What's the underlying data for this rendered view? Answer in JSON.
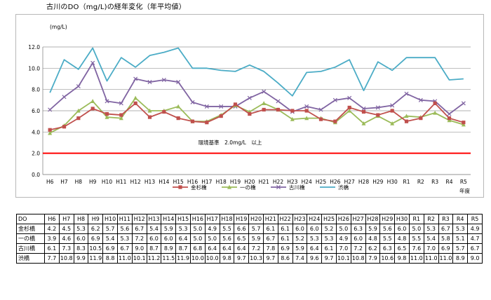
{
  "title": "古川のDO（mg/L)の経年変化（年平均値）",
  "chart_data": {
    "type": "line",
    "categories": [
      "H6",
      "H7",
      "H8",
      "H9",
      "H10",
      "H11",
      "H12",
      "H13",
      "H14",
      "H15",
      "H16",
      "H17",
      "H18",
      "H19",
      "H20",
      "H21",
      "H22",
      "H23",
      "H24",
      "H25",
      "H26",
      "H27",
      "H28",
      "H29",
      "H30",
      "R1",
      "R2",
      "R3",
      "R4",
      "R5"
    ],
    "ylabel": "(mg/L)",
    "xlabel": "年度",
    "ylim": [
      0,
      12
    ],
    "yticks": [
      "0.0",
      "2.0",
      "4.0",
      "6.0",
      "8.0",
      "10.0",
      "12.0"
    ],
    "grid": true,
    "legend_position": "bottom",
    "series": [
      {
        "name": "金杉橋",
        "color": "#c0504d",
        "marker": "square",
        "values": [
          4.2,
          4.5,
          5.3,
          6.2,
          5.7,
          5.6,
          6.7,
          5.4,
          5.9,
          5.3,
          5.0,
          4.9,
          5.5,
          6.6,
          5.7,
          6.1,
          6.1,
          6.0,
          6.0,
          5.2,
          5.0,
          6.3,
          5.9,
          5.6,
          6.0,
          5.0,
          5.3,
          6.7,
          5.3,
          4.9
        ]
      },
      {
        "name": "一の橋",
        "color": "#9bbb59",
        "marker": "triangle",
        "values": [
          3.9,
          4.6,
          6.0,
          6.9,
          5.4,
          5.3,
          7.2,
          6.0,
          6.0,
          6.4,
          5.0,
          5.0,
          5.6,
          6.5,
          5.9,
          6.7,
          6.1,
          5.2,
          5.3,
          5.3,
          4.9,
          6.0,
          4.8,
          5.5,
          4.8,
          5.5,
          5.4,
          5.8,
          5.1,
          4.7
        ]
      },
      {
        "name": "古川橋",
        "color": "#8064a2",
        "marker": "x",
        "values": [
          6.1,
          7.3,
          8.3,
          10.5,
          6.9,
          6.7,
          9.0,
          8.7,
          8.9,
          8.7,
          6.8,
          6.4,
          6.4,
          6.4,
          7.2,
          7.8,
          6.9,
          5.9,
          6.4,
          6.1,
          7.0,
          7.2,
          6.2,
          6.3,
          6.5,
          7.6,
          7.0,
          6.9,
          5.7,
          6.7
        ]
      },
      {
        "name": "渋橋",
        "color": "#4bacc6",
        "marker": "none",
        "values": [
          7.7,
          10.8,
          9.9,
          11.9,
          8.8,
          11.0,
          10.1,
          11.2,
          11.5,
          11.9,
          10.0,
          10.0,
          9.8,
          9.7,
          10.3,
          9.7,
          8.6,
          7.4,
          9.6,
          9.7,
          10.1,
          10.8,
          7.9,
          10.6,
          9.8,
          11.0,
          11.0,
          11.0,
          8.9,
          9.0
        ]
      }
    ],
    "reference_line": {
      "value": 2.0,
      "color": "#ff0000",
      "label": "環境基準　2.0mg/L　以上"
    }
  },
  "table": {
    "header_label": "DO",
    "columns": [
      "H6",
      "H7",
      "H8",
      "H9",
      "H10",
      "H11",
      "H12",
      "H13",
      "H14",
      "H15",
      "H16",
      "H17",
      "H18",
      "H19",
      "H20",
      "H21",
      "H22",
      "H23",
      "H24",
      "H25",
      "H26",
      "H27",
      "H28",
      "H29",
      "H30",
      "R1",
      "R2",
      "R3",
      "R4",
      "R5"
    ],
    "rows": [
      {
        "label": "金杉橋",
        "cells": [
          "4.2",
          "4.5",
          "5.3",
          "6.2",
          "5.7",
          "5.6",
          "6.7",
          "5.4",
          "5.9",
          "5.3",
          "5.0",
          "4.9",
          "5.5",
          "6.6",
          "5.7",
          "6.1",
          "6.1",
          "6.0",
          "6.0",
          "5.2",
          "5.0",
          "6.3",
          "5.9",
          "5.6",
          "6.0",
          "5.0",
          "5.3",
          "6.7",
          "5.3",
          "4.9"
        ]
      },
      {
        "label": "一の橋",
        "cells": [
          "3.9",
          "4.6",
          "6.0",
          "6.9",
          "5.4",
          "5.3",
          "7.2",
          "6.0",
          "6.0",
          "6.4",
          "5.0",
          "5.0",
          "5.6",
          "6.5",
          "5.9",
          "6.7",
          "6.1",
          "5.2",
          "5.3",
          "5.3",
          "4.9",
          "6.0",
          "4.8",
          "5.5",
          "4.8",
          "5.5",
          "5.4",
          "5.8",
          "5.1",
          "4.7"
        ]
      },
      {
        "label": "古川橋",
        "cells": [
          "6.1",
          "7.3",
          "8.3",
          "10.5",
          "6.9",
          "6.7",
          "9.0",
          "8.7",
          "8.9",
          "8.7",
          "6.8",
          "6.4",
          "6.4",
          "6.4",
          "7.2",
          "7.8",
          "6.9",
          "5.9",
          "6.4",
          "6.1",
          "7.0",
          "7.2",
          "6.2",
          "6.3",
          "6.5",
          "7.6",
          "7.0",
          "6.9",
          "5.7",
          "6.7"
        ]
      },
      {
        "label": "渋橋",
        "cells": [
          "7.7",
          "10.8",
          "9.9",
          "11.9",
          "8.8",
          "11.0",
          "10.1",
          "11.2",
          "11.5",
          "11.9",
          "10.0",
          "10.0",
          "9.8",
          "9.7",
          "10.3",
          "9.7",
          "8.6",
          "7.4",
          "9.6",
          "9.7",
          "10.1",
          "10.8",
          "7.9",
          "10.6",
          "9.8",
          "11.0",
          "11.0",
          "11.0",
          "8.9",
          "9.0"
        ]
      }
    ]
  }
}
